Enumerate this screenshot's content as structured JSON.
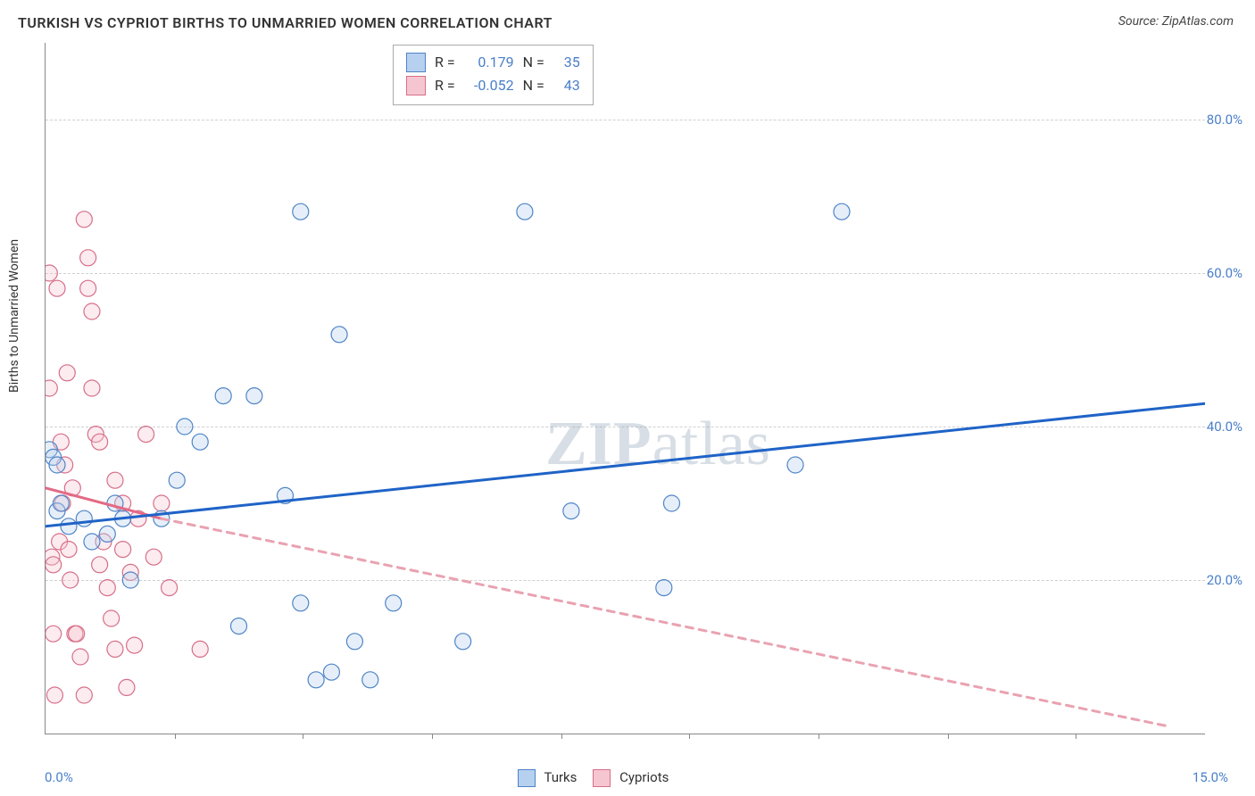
{
  "title": "TURKISH VS CYPRIOT BIRTHS TO UNMARRIED WOMEN CORRELATION CHART",
  "source": "Source: ZipAtlas.com",
  "watermark_bold": "ZIP",
  "watermark_rest": "atlas",
  "y_axis_title": "Births to Unmarried Women",
  "chart": {
    "type": "scatter",
    "xlim": [
      0,
      15
    ],
    "ylim": [
      0,
      90
    ],
    "x_axis_unit": "%",
    "y_axis_unit": "%",
    "x_tick_labels": [
      {
        "x": 0,
        "label": "0.0%"
      },
      {
        "x": 15,
        "label": "15.0%"
      }
    ],
    "x_tick_positions": [
      1.67,
      3.33,
      5.0,
      6.67,
      8.33,
      10.0,
      11.67,
      13.33
    ],
    "y_tick_labels": [
      {
        "y": 20,
        "label": "20.0%"
      },
      {
        "y": 40,
        "label": "40.0%"
      },
      {
        "y": 60,
        "label": "60.0%"
      },
      {
        "y": 80,
        "label": "80.0%"
      }
    ],
    "grid_color": "#d0d0d0",
    "axis_color": "#888888",
    "background_color": "#ffffff",
    "marker_radius": 9,
    "marker_stroke_width": 1.2,
    "fill_opacity": 0.35,
    "trend_line_width": 3,
    "series": {
      "turks": {
        "label": "Turks",
        "fill": "#b6d0ef",
        "stroke": "#4f84c7",
        "r": 0.179,
        "n": 35,
        "trend": {
          "x1": 0,
          "y1": 27,
          "x2": 15,
          "y2": 43,
          "dashed": false,
          "color": "#1f63c7"
        },
        "points": [
          [
            0.05,
            37
          ],
          [
            0.1,
            36
          ],
          [
            0.15,
            35
          ],
          [
            0.15,
            29
          ],
          [
            0.2,
            30
          ],
          [
            0.3,
            27
          ],
          [
            0.5,
            28
          ],
          [
            0.6,
            25
          ],
          [
            0.8,
            26
          ],
          [
            0.9,
            30
          ],
          [
            1.0,
            28
          ],
          [
            1.1,
            20
          ],
          [
            1.5,
            28
          ],
          [
            1.7,
            33
          ],
          [
            1.8,
            40
          ],
          [
            2.0,
            38
          ],
          [
            2.3,
            44
          ],
          [
            2.5,
            14
          ],
          [
            2.7,
            44
          ],
          [
            3.1,
            31
          ],
          [
            3.3,
            17
          ],
          [
            3.3,
            68
          ],
          [
            3.5,
            7
          ],
          [
            3.7,
            8
          ],
          [
            3.8,
            52
          ],
          [
            4.0,
            12
          ],
          [
            4.2,
            7
          ],
          [
            4.5,
            17
          ],
          [
            5.4,
            12
          ],
          [
            6.2,
            68
          ],
          [
            8.0,
            19
          ],
          [
            8.1,
            30
          ],
          [
            9.7,
            35
          ],
          [
            10.3,
            68
          ],
          [
            6.8,
            29
          ]
        ]
      },
      "cypriots": {
        "label": "Cypriots",
        "fill": "#f6c6d0",
        "stroke": "#d66f88",
        "r": -0.052,
        "n": 43,
        "trend_solid": {
          "x1": 0,
          "y1": 32,
          "x2": 1.5,
          "y2": 28,
          "dashed": false,
          "color": "#e36a85"
        },
        "trend_dashed": {
          "x1": 1.5,
          "y1": 28,
          "x2": 14.5,
          "y2": 1,
          "dashed": true,
          "color": "#e9a2b1"
        },
        "points": [
          [
            0.05,
            60
          ],
          [
            0.05,
            45
          ],
          [
            0.08,
            23
          ],
          [
            0.1,
            22
          ],
          [
            0.1,
            13
          ],
          [
            0.12,
            5
          ],
          [
            0.15,
            58
          ],
          [
            0.18,
            25
          ],
          [
            0.2,
            38
          ],
          [
            0.22,
            30
          ],
          [
            0.25,
            35
          ],
          [
            0.28,
            47
          ],
          [
            0.3,
            24
          ],
          [
            0.32,
            20
          ],
          [
            0.35,
            32
          ],
          [
            0.38,
            13
          ],
          [
            0.4,
            13
          ],
          [
            0.45,
            10
          ],
          [
            0.5,
            67
          ],
          [
            0.55,
            62
          ],
          [
            0.55,
            58
          ],
          [
            0.6,
            55
          ],
          [
            0.6,
            45
          ],
          [
            0.65,
            39
          ],
          [
            0.7,
            38
          ],
          [
            0.7,
            22
          ],
          [
            0.75,
            25
          ],
          [
            0.8,
            19
          ],
          [
            0.85,
            15
          ],
          [
            0.9,
            33
          ],
          [
            0.9,
            11
          ],
          [
            1.0,
            30
          ],
          [
            1.0,
            24
          ],
          [
            1.05,
            6
          ],
          [
            1.1,
            21
          ],
          [
            1.15,
            11.5
          ],
          [
            1.2,
            28
          ],
          [
            1.3,
            39
          ],
          [
            1.4,
            23
          ],
          [
            1.5,
            30
          ],
          [
            1.6,
            19
          ],
          [
            2.0,
            11
          ],
          [
            0.5,
            5
          ]
        ]
      }
    }
  },
  "stats_legend": {
    "r_label": "R =",
    "n_label": "N ="
  }
}
